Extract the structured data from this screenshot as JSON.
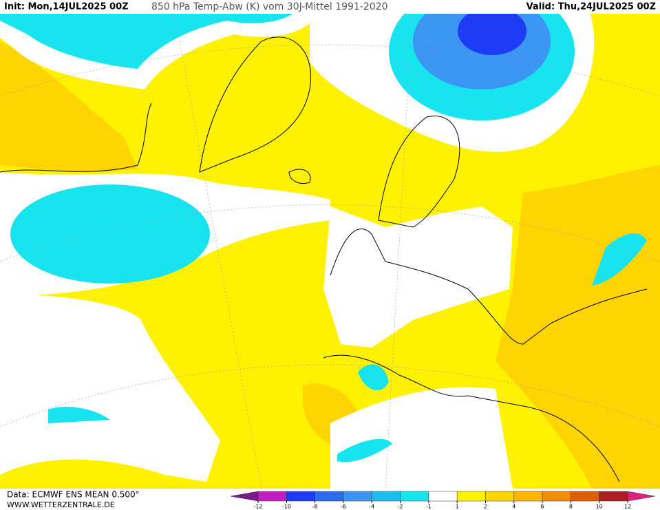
{
  "header": {
    "init": "Init: Mon,14JUL2025 00Z",
    "title": "850 hPa Temp-Abw (K) vom 30J-Mittel 1991-2020",
    "valid": "Valid: Thu,24JUL2025 00Z"
  },
  "footer": {
    "source": "Data: ECMWF ENS MEAN 0.500°",
    "site": "WWW.WETTERZENTRALE.DE"
  },
  "colorbar": {
    "ticks": [
      -12,
      -10,
      -8,
      -6,
      -4,
      -2,
      -1,
      1,
      2,
      4,
      6,
      8,
      10,
      12
    ],
    "colors": [
      "#7a1a8a",
      "#c41cc4",
      "#1f3cf5",
      "#2a6cf0",
      "#3a96f2",
      "#1cbcf0",
      "#18e4f0",
      "#ffffff",
      "#fff200",
      "#ffd400",
      "#ffb400",
      "#f58c00",
      "#e05e00",
      "#b01a22",
      "#e0207a"
    ]
  }
}
